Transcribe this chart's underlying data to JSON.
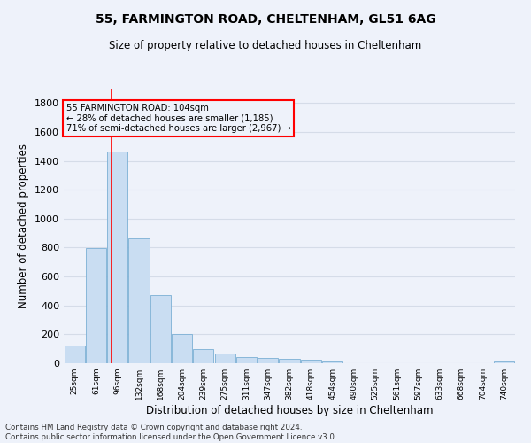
{
  "title1": "55, FARMINGTON ROAD, CHELTENHAM, GL51 6AG",
  "title2": "Size of property relative to detached houses in Cheltenham",
  "xlabel": "Distribution of detached houses by size in Cheltenham",
  "ylabel": "Number of detached properties",
  "footnote": "Contains HM Land Registry data © Crown copyright and database right 2024.\nContains public sector information licensed under the Open Government Licence v3.0.",
  "bin_labels": [
    "25sqm",
    "61sqm",
    "96sqm",
    "132sqm",
    "168sqm",
    "204sqm",
    "239sqm",
    "275sqm",
    "311sqm",
    "347sqm",
    "382sqm",
    "418sqm",
    "454sqm",
    "490sqm",
    "525sqm",
    "561sqm",
    "597sqm",
    "633sqm",
    "668sqm",
    "704sqm",
    "740sqm"
  ],
  "bar_values": [
    120,
    795,
    1462,
    862,
    470,
    200,
    100,
    65,
    40,
    35,
    30,
    22,
    10,
    3,
    2,
    2,
    1,
    1,
    1,
    1,
    15
  ],
  "bar_color": "#c9ddf2",
  "bar_edge_color": "#7bafd4",
  "red_line_x": 1.72,
  "annotation_title": "55 FARMINGTON ROAD: 104sqm",
  "annotation_line1": "← 28% of detached houses are smaller (1,185)",
  "annotation_line2": "71% of semi-detached houses are larger (2,967) →",
  "ylim": [
    0,
    1900
  ],
  "yticks": [
    0,
    200,
    400,
    600,
    800,
    1000,
    1200,
    1400,
    1600,
    1800
  ],
  "bg_color": "#eef2fa",
  "grid_color": "#d5dce8"
}
